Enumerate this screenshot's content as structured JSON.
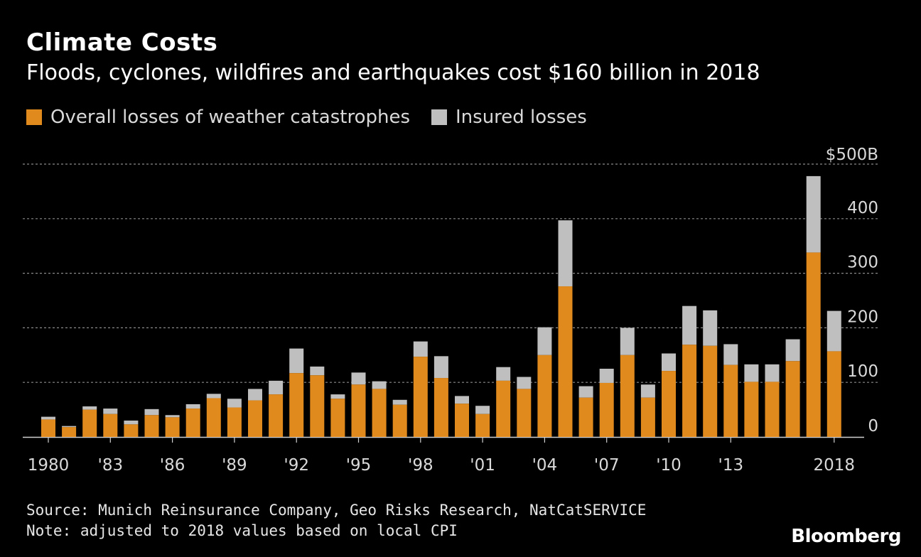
{
  "title": "Climate Costs",
  "subtitle": "Floods, cyclones, wildfires and earthquakes cost $160 billion in 2018",
  "legend": {
    "overall": "Overall losses of weather catastrophes",
    "insured": "Insured losses"
  },
  "colors": {
    "overall": "#E08A1E",
    "insured": "#BFBFBF",
    "background": "#000000"
  },
  "source": "Source: Munich Reinsurance Company, Geo Risks Research, NatCatSERVICE",
  "note": "Note: adjusted to 2018 values based on local CPI",
  "brand": "Bloomberg",
  "chart_data": {
    "type": "bar",
    "stacked": true,
    "title": "Climate Costs",
    "subtitle": "Floods, cyclones, wildfires and earthquakes cost $160 billion in 2018",
    "x": [
      1980,
      1981,
      1982,
      1983,
      1984,
      1985,
      1986,
      1987,
      1988,
      1989,
      1990,
      1991,
      1992,
      1993,
      1994,
      1995,
      1996,
      1997,
      1998,
      1999,
      2000,
      2001,
      2002,
      2003,
      2004,
      2005,
      2006,
      2007,
      2008,
      2009,
      2010,
      2011,
      2012,
      2013,
      2014,
      2015,
      2016,
      2017,
      2018
    ],
    "x_tick_labels": [
      {
        "x": 1980,
        "label": "1980"
      },
      {
        "x": 1983,
        "label": "'83"
      },
      {
        "x": 1986,
        "label": "'86"
      },
      {
        "x": 1989,
        "label": "'89"
      },
      {
        "x": 1992,
        "label": "'92"
      },
      {
        "x": 1995,
        "label": "'95"
      },
      {
        "x": 1998,
        "label": "'98"
      },
      {
        "x": 2001,
        "label": "'01"
      },
      {
        "x": 2004,
        "label": "'04"
      },
      {
        "x": 2007,
        "label": "'07"
      },
      {
        "x": 2010,
        "label": "'10"
      },
      {
        "x": 2013,
        "label": "'13"
      },
      {
        "x": 2018,
        "label": "2018"
      }
    ],
    "y_ticks": [
      0,
      100,
      200,
      300,
      400,
      500
    ],
    "y_tick_labels": [
      "0",
      "100",
      "200",
      "300",
      "400",
      "$500B"
    ],
    "ylim": [
      0,
      500
    ],
    "grid": true,
    "legend_position": "top-left",
    "series": [
      {
        "name": "Overall losses of weather catastrophes",
        "values": [
          32,
          18,
          50,
          42,
          23,
          40,
          36,
          52,
          71,
          54,
          67,
          78,
          117,
          113,
          70,
          96,
          88,
          59,
          147,
          108,
          61,
          42,
          103,
          88,
          150,
          276,
          72,
          99,
          150,
          72,
          121,
          169,
          167,
          132,
          101,
          101,
          139,
          338,
          157
        ]
      },
      {
        "name": "Insured losses",
        "values": [
          5,
          2,
          6,
          10,
          7,
          11,
          4,
          8,
          8,
          16,
          21,
          25,
          45,
          16,
          8,
          22,
          14,
          9,
          28,
          40,
          14,
          15,
          25,
          22,
          51,
          121,
          21,
          26,
          50,
          24,
          32,
          71,
          65,
          38,
          32,
          32,
          40,
          140,
          74
        ]
      }
    ]
  }
}
